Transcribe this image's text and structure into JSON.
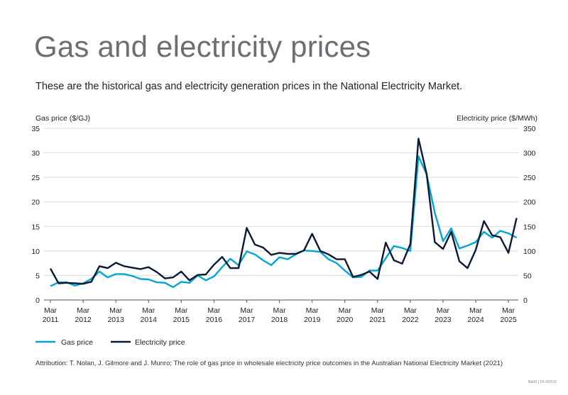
{
  "title": "Gas and electricity prices",
  "subtitle": "These are the historical gas and electricity generation prices in the National Electricity Market.",
  "attribution": "Attribution: T. Nolan, J. Gilmore and J. Munro; The role of gas price in wholesale electricity price outcomes in the Australian National Electricity Market (2021)",
  "code": "B&M | 25-00310",
  "chart_data": {
    "type": "line",
    "ylabel_left": "Gas price ($/GJ)",
    "ylabel_right": "Electricity price ($/MWh)",
    "ylim_left": [
      0,
      35
    ],
    "ylim_right": [
      0,
      350
    ],
    "yticks_left": [
      "0",
      "5",
      "10",
      "15",
      "20",
      "25",
      "30",
      "35"
    ],
    "yticks_right": [
      "0",
      "50",
      "100",
      "150",
      "200",
      "250",
      "300",
      "350"
    ],
    "xticks": [
      [
        "Mar",
        "2011"
      ],
      [
        "Mar",
        "2012"
      ],
      [
        "Mar",
        "2013"
      ],
      [
        "Mar",
        "2014"
      ],
      [
        "Mar",
        "2015"
      ],
      [
        "Mar",
        "2016"
      ],
      [
        "Mar",
        "2017"
      ],
      [
        "Mar",
        "2018"
      ],
      [
        "Mar",
        "2019"
      ],
      [
        "Mar",
        "2020"
      ],
      [
        "Mar",
        "2021"
      ],
      [
        "Mar",
        "2022"
      ],
      [
        "Mar",
        "2023"
      ],
      [
        "Mar",
        "2024"
      ],
      [
        "Mar",
        "2025"
      ]
    ],
    "x_start": "Mar 2011",
    "x_end": "Jun 2025",
    "frequency": "quarterly",
    "grid": true,
    "legend": "bottom-left",
    "series": [
      {
        "name": "Gas price",
        "axis": "left",
        "color": "#00a6d6",
        "values": [
          2.8,
          3.6,
          3.6,
          2.9,
          3.4,
          4.3,
          5.8,
          4.6,
          5.3,
          5.3,
          4.9,
          4.3,
          4.2,
          3.6,
          3.5,
          2.6,
          3.7,
          3.5,
          5.0,
          4.0,
          4.8,
          6.7,
          8.4,
          7.1,
          9.9,
          9.3,
          8.1,
          7.1,
          8.7,
          8.3,
          9.3,
          10.1,
          10.0,
          9.8,
          8.3,
          7.5,
          6.0,
          4.6,
          4.7,
          6.0,
          6.0,
          8.5,
          11.0,
          10.6,
          10.0,
          29.3,
          25.6,
          17.8,
          12.0,
          14.6,
          10.5,
          11.1,
          11.8,
          13.9,
          12.7,
          14.1,
          13.6,
          12.7
        ]
      },
      {
        "name": "Electricity price",
        "axis": "right",
        "color": "#0a1a33",
        "values": [
          64,
          34,
          35,
          34,
          33,
          37,
          69,
          65,
          76,
          69,
          66,
          63,
          67,
          57,
          44,
          46,
          58,
          40,
          51,
          52,
          72,
          88,
          65,
          65,
          147,
          113,
          107,
          92,
          96,
          94,
          94,
          101,
          135,
          100,
          93,
          83,
          83,
          47,
          51,
          58,
          43,
          117,
          81,
          74,
          114,
          329,
          257,
          118,
          104,
          139,
          79,
          65,
          102,
          161,
          132,
          128,
          96,
          167
        ]
      }
    ]
  }
}
